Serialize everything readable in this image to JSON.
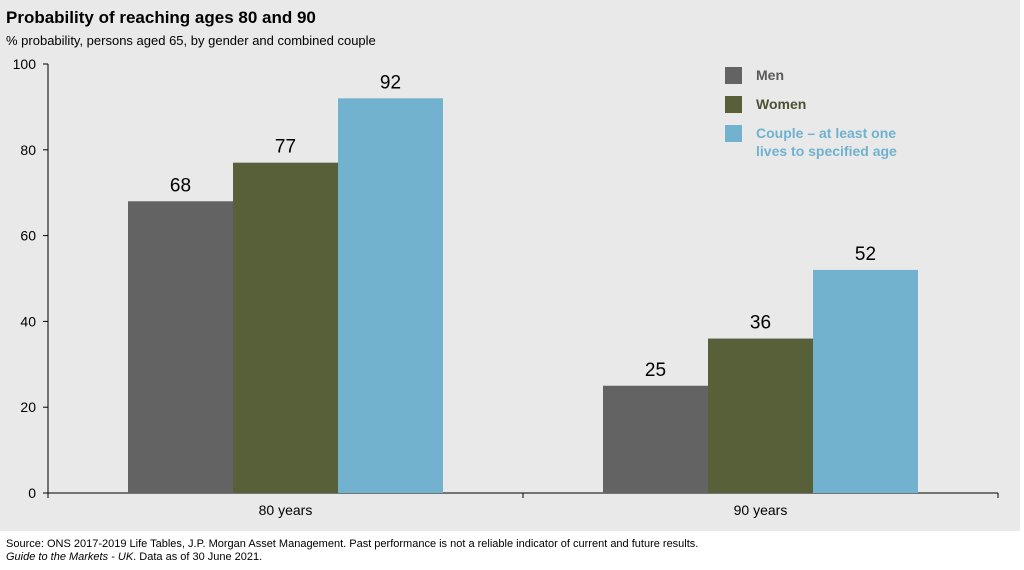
{
  "chart_data": {
    "type": "bar",
    "title": "Probability of reaching ages 80 and 90",
    "subtitle": "% probability, persons aged 65, by gender and combined couple",
    "categories": [
      "80 years",
      "90 years"
    ],
    "series": [
      {
        "name": "Men",
        "values": [
          68,
          25
        ],
        "color": "#636363"
      },
      {
        "name": "Women",
        "values": [
          77,
          36
        ],
        "color": "#58603a"
      },
      {
        "name": "Couple – at least one lives to specified age",
        "values": [
          92,
          52
        ],
        "color": "#72b2ce"
      }
    ],
    "xlabel": "",
    "ylabel": "",
    "ylim": [
      0,
      100
    ],
    "yticks": [
      "0",
      "20",
      "40",
      "60",
      "80",
      "100"
    ],
    "grid": false,
    "legend_placement": "top-right"
  },
  "legend": {
    "men": "Men",
    "women": "Women",
    "couple": "Couple – at least one lives to specified age"
  },
  "footer": {
    "line1": "Source: ONS 2017-2019 Life Tables, J.P. Morgan Asset Management. Past performance is not a reliable indicator of current and future results.",
    "line2_italic": "Guide to the Markets - UK",
    "line2_rest": ". Data as of 30 June 2021."
  }
}
